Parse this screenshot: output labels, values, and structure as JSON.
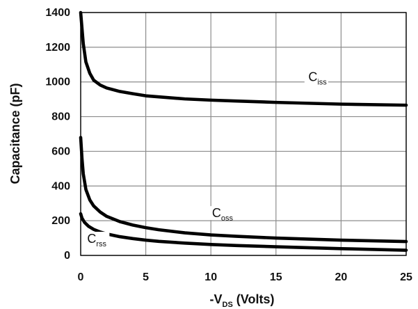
{
  "chart_data": {
    "type": "line",
    "xlabel": "-V",
    "xlabel_sub": "DS",
    "xlabel_tail": " (Volts)",
    "ylabel": "Capacitance (pF)",
    "xlim": [
      0,
      25
    ],
    "ylim": [
      0,
      1400
    ],
    "xticks": [
      0,
      5,
      10,
      15,
      20,
      25
    ],
    "yticks": [
      0,
      200,
      400,
      600,
      800,
      1000,
      1200,
      1400
    ],
    "xtick_labels": [
      "0",
      "5",
      "10",
      "15",
      "20",
      "25"
    ],
    "ytick_labels": [
      "0",
      "200",
      "400",
      "600",
      "800",
      "1000",
      "1200",
      "1400"
    ],
    "grid": true,
    "series": [
      {
        "name": "C",
        "subscript": "iss",
        "x": [
          0,
          0.1,
          0.2,
          0.4,
          0.7,
          1,
          1.5,
          2,
          3,
          4,
          5,
          6,
          8,
          10,
          12,
          15,
          20,
          25
        ],
        "y": [
          1400,
          1310,
          1220,
          1115,
          1050,
          1010,
          982,
          965,
          945,
          932,
          920,
          914,
          902,
          895,
          890,
          882,
          872,
          866
        ]
      },
      {
        "name": "C",
        "subscript": "oss",
        "x": [
          0,
          0.1,
          0.2,
          0.4,
          0.7,
          1,
          1.5,
          2,
          3,
          4,
          5,
          6,
          8,
          10,
          12,
          15,
          20,
          25
        ],
        "y": [
          680,
          560,
          470,
          380,
          320,
          285,
          250,
          225,
          195,
          175,
          160,
          148,
          130,
          118,
          110,
          100,
          88,
          80
        ]
      },
      {
        "name": "C",
        "subscript": "rss",
        "x": [
          0,
          0.1,
          0.3,
          0.6,
          1,
          1.5,
          2,
          3,
          4,
          5,
          6,
          8,
          10,
          12,
          15,
          20,
          25
        ],
        "y": [
          240,
          215,
          190,
          168,
          150,
          135,
          124,
          108,
          97,
          88,
          81,
          71,
          63,
          57,
          50,
          39,
          30
        ]
      }
    ]
  }
}
